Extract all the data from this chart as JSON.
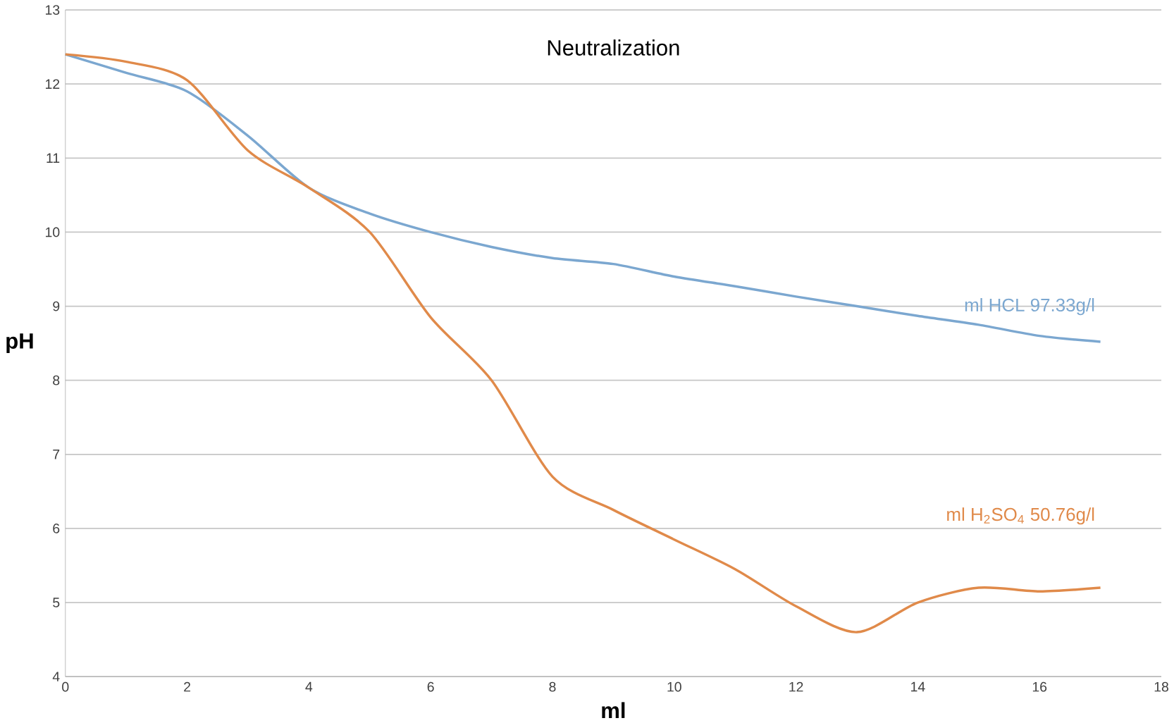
{
  "chart_data": {
    "type": "line",
    "title": "Neutralization",
    "xlabel": "ml",
    "ylabel": "pH",
    "xlim": [
      0,
      18
    ],
    "xticks": [
      0,
      2,
      4,
      6,
      8,
      10,
      12,
      14,
      16,
      18
    ],
    "ylim": [
      4,
      13
    ],
    "yticks": [
      4,
      5,
      6,
      7,
      8,
      9,
      10,
      11,
      12,
      13
    ],
    "grid": "y",
    "x": [
      0,
      1,
      2,
      3,
      4,
      5,
      6,
      7,
      8,
      9,
      10,
      11,
      12,
      13,
      14,
      15,
      16,
      17
    ],
    "series": [
      {
        "name": "ml  HCL 97.33g/l",
        "color": "#7ba7d0",
        "values": [
          12.4,
          12.15,
          11.9,
          11.3,
          10.6,
          10.25,
          10.0,
          9.8,
          9.65,
          9.57,
          9.4,
          9.27,
          9.13,
          9.0,
          8.87,
          8.75,
          8.6,
          8.52
        ]
      },
      {
        "name": "ml  H$_{2}$SO$_{4}$ 50.76g/l",
        "color": "#e08a4a",
        "values": [
          12.4,
          12.3,
          12.05,
          11.1,
          10.6,
          10.0,
          8.85,
          8.0,
          6.7,
          6.25,
          5.85,
          5.45,
          4.95,
          4.6,
          5.0,
          5.2,
          5.15,
          5.2
        ]
      }
    ]
  }
}
